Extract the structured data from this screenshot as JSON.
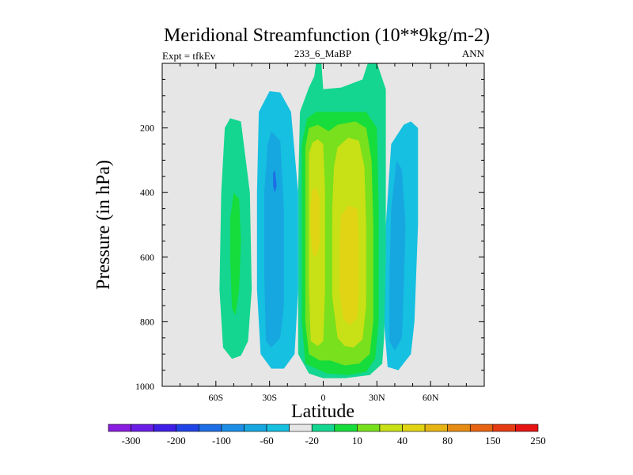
{
  "chart_data": {
    "type": "heatmap",
    "title": "Meridional Streamfunction (10**9kg/m-2)",
    "left_label": "Expt = tfkEv",
    "center_label": "233_6_MaBP",
    "right_label": "ANN",
    "xlabel": "Latitude",
    "ylabel": "Pressure (in hPa)",
    "xlim": [
      -90,
      90
    ],
    "ylim": [
      1000,
      0
    ],
    "x_ticks": [
      {
        "value": -60,
        "label": "60S"
      },
      {
        "value": -30,
        "label": "30S"
      },
      {
        "value": 0,
        "label": "0"
      },
      {
        "value": 30,
        "label": "30N"
      },
      {
        "value": 60,
        "label": "60N"
      }
    ],
    "y_ticks": [
      {
        "value": 200,
        "label": "200"
      },
      {
        "value": 400,
        "label": "400"
      },
      {
        "value": 600,
        "label": "600"
      },
      {
        "value": 800,
        "label": "800"
      },
      {
        "value": 1000,
        "label": "1000"
      }
    ],
    "background_color": "#e6e6e6",
    "colorbar": {
      "labels": [
        "-300",
        "-200",
        "-100",
        "-60",
        "-20",
        "10",
        "40",
        "80",
        "150",
        "250"
      ],
      "colors": [
        "#8a1ee0",
        "#6a1ee6",
        "#3f1fe6",
        "#2044e6",
        "#1e6ee6",
        "#1c8ee6",
        "#16a7e0",
        "#16c0e0",
        "#e6e6e6",
        "#14d690",
        "#16dc3c",
        "#78e01c",
        "#c8e016",
        "#e0d414",
        "#e6b414",
        "#e68c14",
        "#e66414",
        "#e63c14",
        "#e61414"
      ]
    },
    "regions": [
      {
        "color": "#16c0e0",
        "points": [
          [
            -30,
            86
          ],
          [
            -24,
            90
          ],
          [
            -18,
            150
          ],
          [
            -14,
            400
          ],
          [
            -14,
            700
          ],
          [
            -16,
            900
          ],
          [
            -22,
            945
          ],
          [
            -29,
            945
          ],
          [
            -35,
            900
          ],
          [
            -37,
            700
          ],
          [
            -37,
            400
          ],
          [
            -36,
            150
          ]
        ]
      },
      {
        "color": "#16a7e0",
        "points": [
          [
            -29,
            210
          ],
          [
            -24,
            240
          ],
          [
            -22,
            450
          ],
          [
            -22,
            750
          ],
          [
            -24,
            850
          ],
          [
            -29,
            880
          ],
          [
            -32,
            860
          ],
          [
            -33,
            650
          ],
          [
            -33,
            400
          ],
          [
            -31,
            250
          ]
        ]
      },
      {
        "color": "#1e6ee6",
        "points": [
          [
            -27,
            330
          ],
          [
            -26,
            380
          ],
          [
            -27,
            400
          ],
          [
            -28,
            380
          ],
          [
            -28,
            340
          ]
        ]
      },
      {
        "color": "#14d690",
        "points": [
          [
            -52,
            170
          ],
          [
            -46,
            180
          ],
          [
            -41,
            400
          ],
          [
            -40,
            700
          ],
          [
            -42,
            860
          ],
          [
            -46,
            905
          ],
          [
            -51,
            915
          ],
          [
            -56,
            880
          ],
          [
            -58,
            700
          ],
          [
            -57,
            400
          ],
          [
            -55,
            200
          ]
        ]
      },
      {
        "color": "#16dc3c",
        "points": [
          [
            -50,
            400
          ],
          [
            -47,
            420
          ],
          [
            -46,
            550
          ],
          [
            -47,
            700
          ],
          [
            -49,
            780
          ],
          [
            -51,
            760
          ],
          [
            -52,
            600
          ],
          [
            -52,
            480
          ]
        ]
      },
      {
        "color": "#16c0e0",
        "points": [
          [
            45,
            190
          ],
          [
            49,
            180
          ],
          [
            53,
            200
          ],
          [
            53,
            500
          ],
          [
            51,
            800
          ],
          [
            49,
            900
          ],
          [
            42,
            950
          ],
          [
            36,
            940
          ],
          [
            34,
            800
          ],
          [
            35,
            500
          ],
          [
            38,
            250
          ]
        ]
      },
      {
        "color": "#16a7e0",
        "points": [
          [
            41,
            300
          ],
          [
            44,
            330
          ],
          [
            46,
            500
          ],
          [
            45,
            700
          ],
          [
            44,
            850
          ],
          [
            40,
            890
          ],
          [
            37,
            860
          ],
          [
            37,
            650
          ],
          [
            38,
            450
          ]
        ]
      },
      {
        "color": "#14d690",
        "points": [
          [
            -4,
            -2
          ],
          [
            -1,
            -2
          ],
          [
            0,
            80
          ],
          [
            10,
            75
          ],
          [
            22,
            50
          ],
          [
            25,
            -2
          ],
          [
            30,
            -2
          ],
          [
            35,
            80
          ],
          [
            35,
            200
          ],
          [
            35,
            600
          ],
          [
            34,
            850
          ],
          [
            33,
            930
          ],
          [
            26,
            965
          ],
          [
            12,
            975
          ],
          [
            0,
            975
          ],
          [
            -4,
            968
          ],
          [
            -8,
            960
          ],
          [
            -14,
            900
          ],
          [
            -14,
            400
          ],
          [
            -13,
            150
          ],
          [
            -8,
            75
          ],
          [
            -5,
            40
          ]
        ]
      },
      {
        "color": "#16dc3c",
        "points": [
          [
            -9,
            170
          ],
          [
            -4,
            150
          ],
          [
            12,
            150
          ],
          [
            24,
            150
          ],
          [
            30,
            200
          ],
          [
            31,
            450
          ],
          [
            31,
            800
          ],
          [
            29,
            915
          ],
          [
            24,
            955
          ],
          [
            14,
            965
          ],
          [
            2,
            960
          ],
          [
            -4,
            945
          ],
          [
            -10,
            930
          ],
          [
            -12,
            800
          ],
          [
            -12,
            400
          ],
          [
            -12,
            250
          ]
        ]
      },
      {
        "color": "#78e01c",
        "points": [
          [
            -8,
            200
          ],
          [
            -3,
            190
          ],
          [
            3,
            210
          ],
          [
            8,
            190
          ],
          [
            18,
            180
          ],
          [
            24,
            200
          ],
          [
            27,
            300
          ],
          [
            28,
            500
          ],
          [
            28,
            800
          ],
          [
            26,
            900
          ],
          [
            20,
            930
          ],
          [
            12,
            935
          ],
          [
            4,
            920
          ],
          [
            -2,
            920
          ],
          [
            -8,
            900
          ],
          [
            -10,
            800
          ],
          [
            -10,
            400
          ],
          [
            -10,
            260
          ]
        ]
      },
      {
        "color": "#c8e016",
        "points": [
          [
            -6,
            245
          ],
          [
            -3,
            235
          ],
          [
            0,
            250
          ],
          [
            1,
            400
          ],
          [
            1,
            700
          ],
          [
            0,
            860
          ],
          [
            -3,
            875
          ],
          [
            -7,
            860
          ],
          [
            -8,
            700
          ],
          [
            -8,
            400
          ],
          [
            -8,
            280
          ]
        ]
      },
      {
        "color": "#c8e016",
        "points": [
          [
            8,
            260
          ],
          [
            14,
            230
          ],
          [
            20,
            240
          ],
          [
            23,
            320
          ],
          [
            24,
            500
          ],
          [
            24,
            750
          ],
          [
            22,
            855
          ],
          [
            17,
            880
          ],
          [
            12,
            875
          ],
          [
            8,
            850
          ],
          [
            5,
            720
          ],
          [
            5,
            450
          ],
          [
            6,
            320
          ]
        ]
      },
      {
        "color": "#e0d414",
        "points": [
          [
            -6,
            390
          ],
          [
            -4,
            385
          ],
          [
            -2,
            420
          ],
          [
            -2,
            560
          ],
          [
            -4,
            600
          ],
          [
            -6,
            590
          ],
          [
            -7,
            520
          ],
          [
            -7,
            440
          ]
        ]
      },
      {
        "color": "#e0d414",
        "points": [
          [
            10,
            470
          ],
          [
            14,
            440
          ],
          [
            19,
            450
          ],
          [
            20,
            550
          ],
          [
            20,
            700
          ],
          [
            19,
            790
          ],
          [
            15,
            810
          ],
          [
            11,
            790
          ],
          [
            9,
            700
          ],
          [
            9,
            560
          ]
        ]
      }
    ]
  }
}
